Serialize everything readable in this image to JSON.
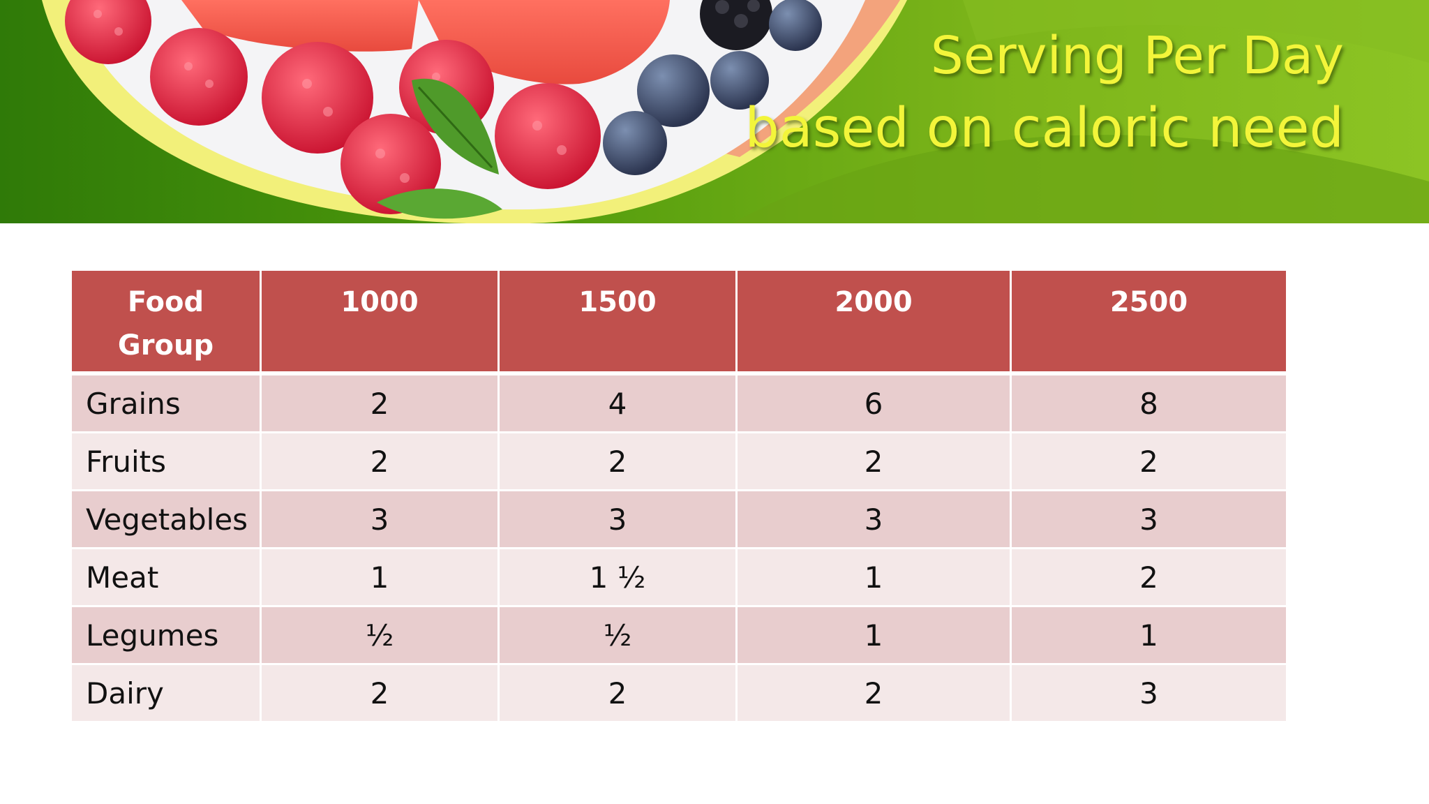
{
  "slide": {
    "title_line1": "Serving Per Day",
    "title_line2": "based on caloric need",
    "banner_colors": {
      "green_dark": "#3f8a06",
      "green_light": "#8cc020",
      "ring_yellow": "#f2f07a",
      "ring_orange": "#f3a37c"
    }
  },
  "table": {
    "header_color": "#c0504d",
    "row_color_odd": "#e8cdce",
    "row_color_even": "#f4e8e8",
    "headers": [
      "Food Group",
      "1000",
      "1500",
      "2000",
      "2500"
    ],
    "rows": [
      {
        "label": "Grains",
        "values": [
          "2",
          "4",
          "6",
          "8"
        ]
      },
      {
        "label": "Fruits",
        "values": [
          "2",
          "2",
          "2",
          "2"
        ]
      },
      {
        "label": "Vegetables",
        "values": [
          "3",
          "3",
          "3",
          "3"
        ]
      },
      {
        "label": "Meat",
        "values": [
          "1",
          "1 ½",
          "1",
          "2"
        ]
      },
      {
        "label": "Legumes",
        "values": [
          "½",
          "½",
          "1",
          "1"
        ]
      },
      {
        "label": "Dairy",
        "values": [
          "2",
          "2",
          "2",
          "3"
        ]
      }
    ]
  }
}
